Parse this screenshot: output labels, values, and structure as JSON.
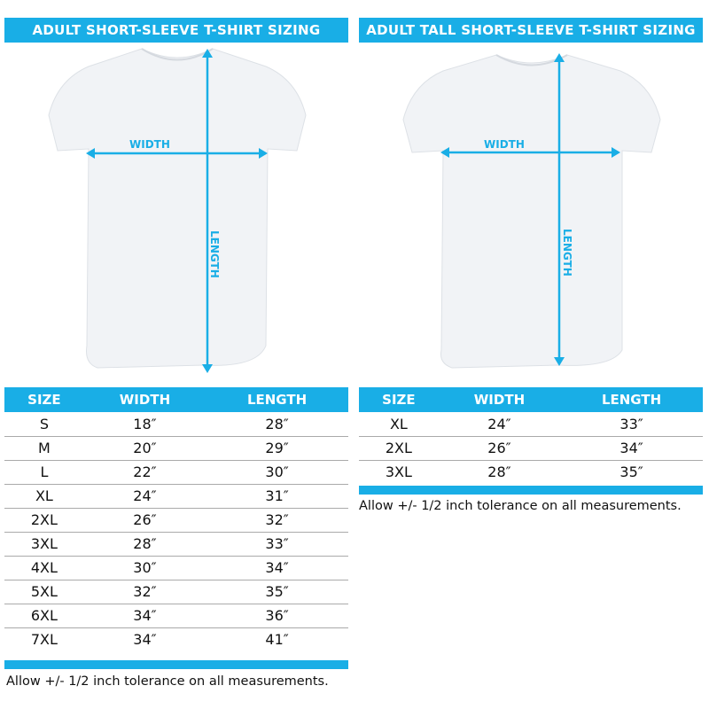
{
  "accent_color": "#19aee6",
  "left": {
    "title": "ADULT SHORT-SLEEVE T-SHIRT SIZING",
    "width_label": "WIDTH",
    "length_label": "LENGTH",
    "headers": [
      "SIZE",
      "WIDTH",
      "LENGTH"
    ],
    "rows": [
      [
        "S",
        "18″",
        "28″"
      ],
      [
        "M",
        "20″",
        "29″"
      ],
      [
        "L",
        "22″",
        "30″"
      ],
      [
        "XL",
        "24″",
        "31″"
      ],
      [
        "2XL",
        "26″",
        "32″"
      ],
      [
        "3XL",
        "28″",
        "33″"
      ],
      [
        "4XL",
        "30″",
        "34″"
      ],
      [
        "5XL",
        "32″",
        "35″"
      ],
      [
        "6XL",
        "34″",
        "36″"
      ],
      [
        "7XL",
        "34″",
        "41″"
      ]
    ],
    "note": "Allow +/- 1/2 inch tolerance on all measurements."
  },
  "right": {
    "title": "ADULT TALL SHORT-SLEEVE T-SHIRT SIZING",
    "width_label": "WIDTH",
    "length_label": "LENGTH",
    "headers": [
      "SIZE",
      "WIDTH",
      "LENGTH"
    ],
    "rows": [
      [
        "XL",
        "24″",
        "33″"
      ],
      [
        "2XL",
        "26″",
        "34″"
      ],
      [
        "3XL",
        "28″",
        "35″"
      ]
    ],
    "note": "Allow +/- 1/2 inch tolerance on all measurements."
  }
}
